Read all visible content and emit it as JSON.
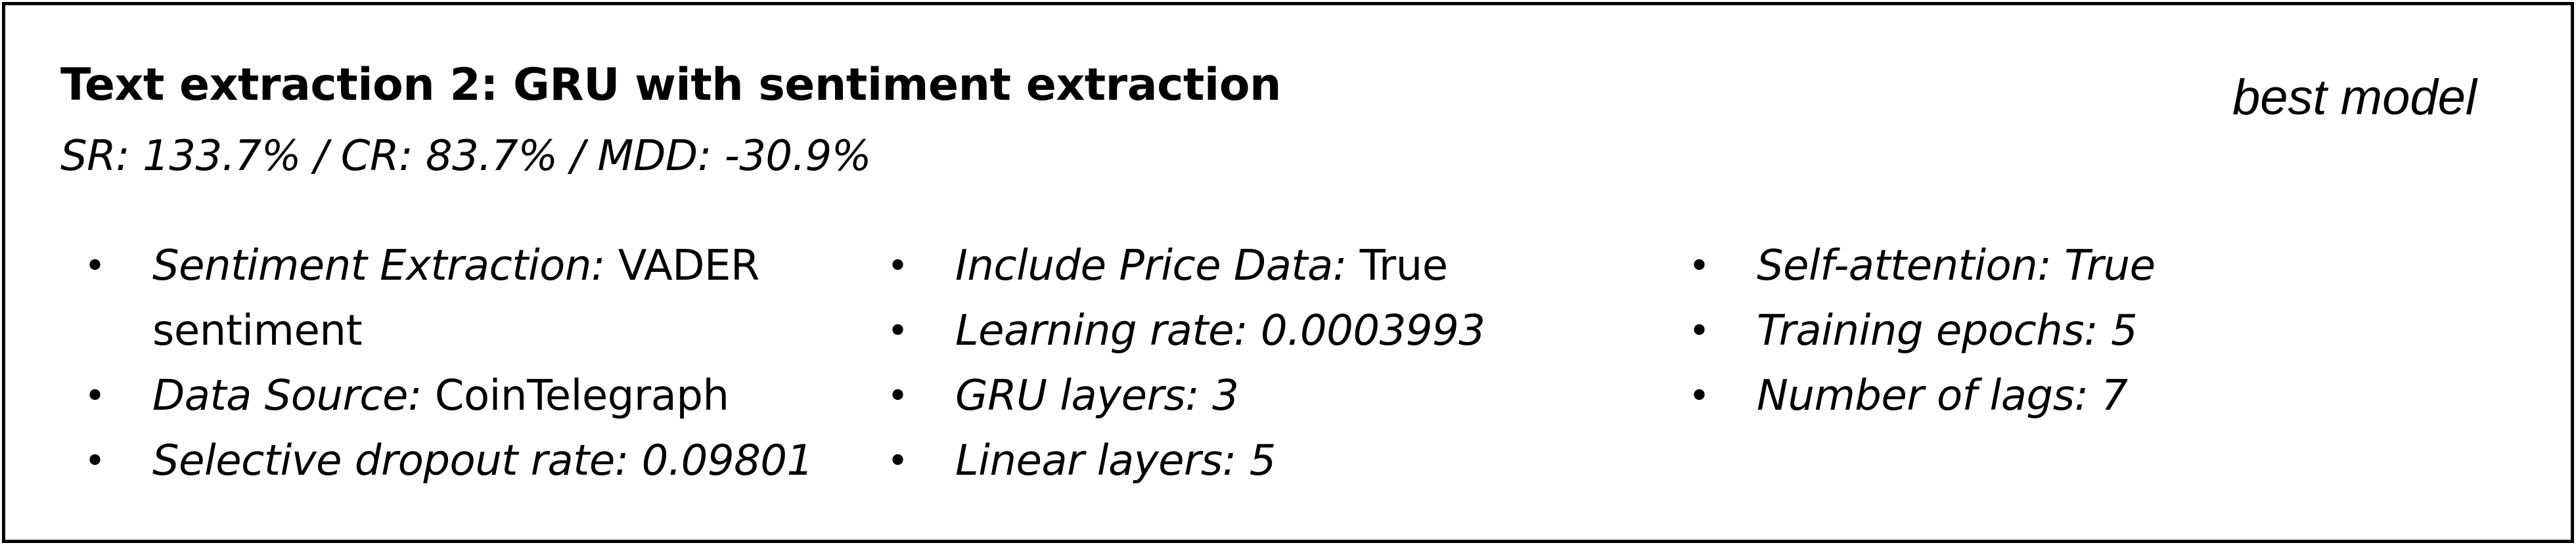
{
  "card": {
    "title": "Text extraction 2: GRU with sentiment extraction",
    "metrics": "SR: 133.7% / CR: 83.7% / MDD: -30.9%",
    "tag": "best model"
  },
  "bullet_glyph": "•",
  "columns": [
    {
      "items": [
        {
          "key": "Sentiment Extraction:",
          "value": " VADER sentiment"
        },
        {
          "key": "Data Source:",
          "value": " CoinTelegraph"
        },
        {
          "key": "Selective dropout rate:",
          "value": " 0.09801"
        }
      ]
    },
    {
      "items": [
        {
          "key": "Include Price Data:",
          "value": " True"
        },
        {
          "key": "Learning rate:",
          "value": " 0.0003993"
        },
        {
          "key": "GRU layers:",
          "value": " 3"
        },
        {
          "key": "Linear layers:",
          "value": " 5"
        }
      ]
    },
    {
      "items": [
        {
          "key": "Self-attention:",
          "value": " True"
        },
        {
          "key": "Training epochs:",
          "value": " 5"
        },
        {
          "key": "Number of lags:",
          "value": " 7"
        }
      ]
    }
  ]
}
